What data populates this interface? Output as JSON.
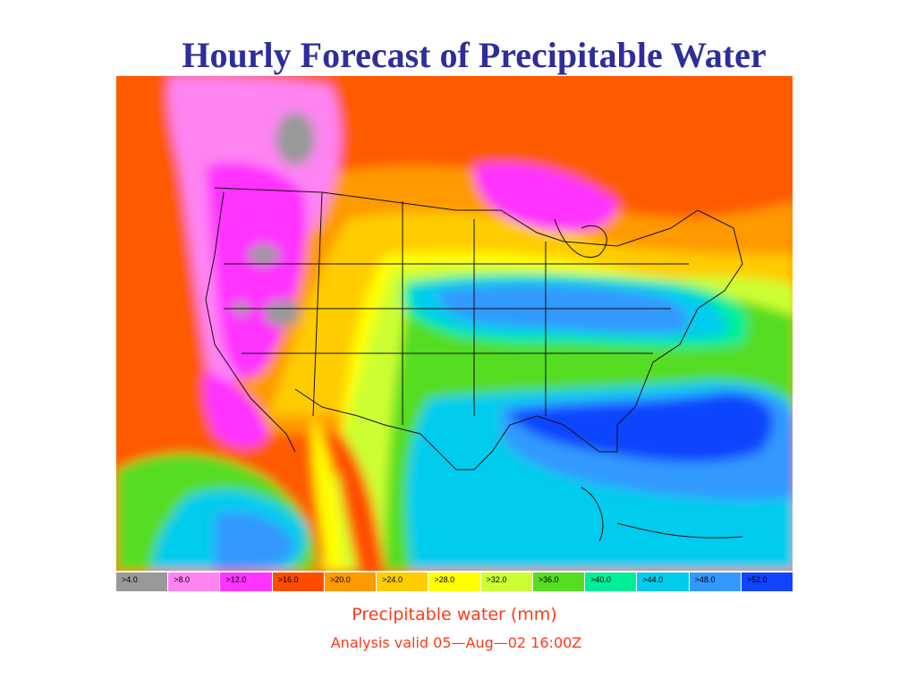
{
  "page": {
    "title": "Hourly Forecast of Precipitable Water"
  },
  "map": {
    "name": "precipitable-water-analysis",
    "region": "contiguous United States, southern Canada, northern Mexico, Gulf of Mexico and western Atlantic",
    "ocean_band_colors": {
      "pacific": "#ff4d00",
      "gulf_and_atlantic": "#1155ff"
    }
  },
  "legend": {
    "items": [
      {
        "label": ">4.0",
        "color": "#999999"
      },
      {
        "label": ">8.0",
        "color": "#ff84f2"
      },
      {
        "label": ">12.0",
        "color": "#ff33ff"
      },
      {
        "label": ">16.0",
        "color": "#ff4d00"
      },
      {
        "label": ">20.0",
        "color": "#ff9a00"
      },
      {
        "label": ">24.0",
        "color": "#ffcc00"
      },
      {
        "label": ">28.0",
        "color": "#ffff00"
      },
      {
        "label": ">32.0",
        "color": "#ccff33"
      },
      {
        "label": ">36.0",
        "color": "#55dd22"
      },
      {
        "label": ">40.0",
        "color": "#00ee99"
      },
      {
        "label": ">44.0",
        "color": "#00ccee"
      },
      {
        "label": ">48.0",
        "color": "#3399ff"
      },
      {
        "label": ">52.0",
        "color": "#1144ff"
      }
    ]
  },
  "caption": {
    "field": "Precipitable water  (mm)",
    "valid": "Analysis valid 05—Aug—02 16:00Z"
  }
}
